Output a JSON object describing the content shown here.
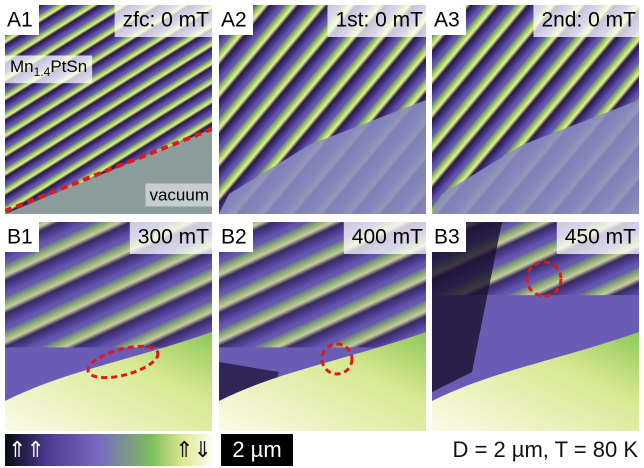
{
  "panels": [
    {
      "label": "A1",
      "field": "zfc: 0 mT"
    },
    {
      "label": "A2",
      "field": "1st: 0 mT"
    },
    {
      "label": "A3",
      "field": "2nd: 0 mT"
    },
    {
      "label": "B1",
      "field": "300 mT"
    },
    {
      "label": "B2",
      "field": "400 mT"
    },
    {
      "label": "B3",
      "field": "450 mT"
    }
  ],
  "material": {
    "base": "Mn",
    "subscript": "1.4",
    "rest": "PtSn"
  },
  "vacuum_label": "vacuum",
  "colorbar": {
    "left_label": "⇑⇑",
    "right_label": "⇑⇓"
  },
  "scale_bar": "2 µm",
  "conditions": "D = 2 µm, T = 80 K"
}
